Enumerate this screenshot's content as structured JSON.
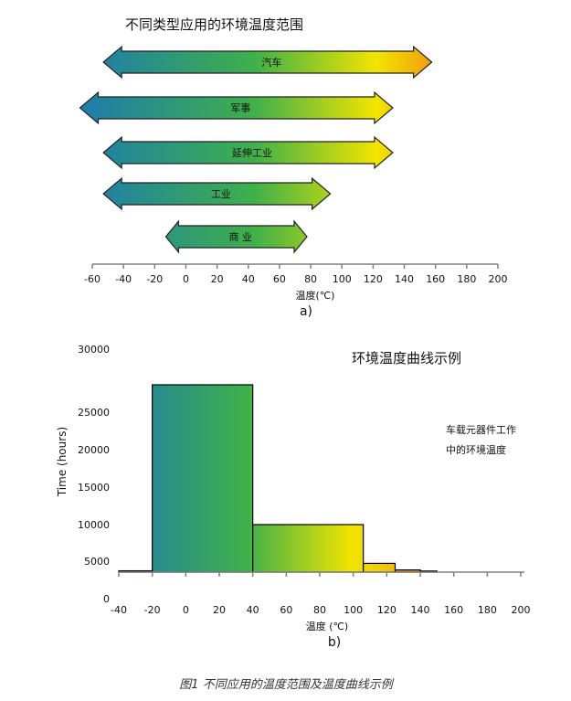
{
  "figure": {
    "panel_a_label": "a)",
    "panel_b_label": "b)",
    "caption": "图1 不同应用的温度范围及温度曲线示例"
  },
  "colors": {
    "grad_start": "#1f7fa6",
    "grad_mid": "#3fb04a",
    "grad_yellow": "#f2e500",
    "grad_end": "#ef4b1f",
    "axis": "#808080",
    "tick_text": "#111111",
    "bar_outline": "#000000",
    "small_bar_blue": "#2a83b6",
    "small_bar_orange": "#f08a1e",
    "small_bar_red": "#c8432a"
  },
  "chart_data": [
    {
      "type": "range-arrows",
      "title": "不同类型应用的环境温度范围",
      "xlabel": "温度(℃)",
      "xlim": [
        -60,
        200
      ],
      "xticks": [
        -60,
        -40,
        -20,
        0,
        20,
        40,
        60,
        80,
        100,
        120,
        140,
        160,
        180,
        200
      ],
      "ranges": [
        {
          "name": "汽车",
          "min": -40,
          "max": 150
        },
        {
          "name": "军事",
          "min": -55,
          "max": 125
        },
        {
          "name": "延伸工业",
          "min": -40,
          "max": 125
        },
        {
          "name": "工业",
          "min": -40,
          "max": 85
        },
        {
          "name": "商 业",
          "min": 0,
          "max": 70
        }
      ]
    },
    {
      "type": "bar",
      "title": "环境温度曲线示例",
      "annotation": "车载元器件工作中的环境温度",
      "xlabel": "温度 (℃)",
      "ylabel": "Time (hours)",
      "xlim": [
        -40,
        200
      ],
      "ylim": [
        0,
        30000
      ],
      "xticks": [
        -40,
        -20,
        0,
        20,
        40,
        60,
        80,
        100,
        120,
        140,
        160,
        180,
        200
      ],
      "yticks": [
        0,
        5000,
        10000,
        15000,
        20000,
        25000,
        30000
      ],
      "bins": [
        {
          "x0": -40,
          "x1": -20,
          "value": 600
        },
        {
          "x0": -20,
          "x1": 40,
          "value": 25000
        },
        {
          "x0": 40,
          "x1": 106,
          "value": 10000
        },
        {
          "x0": 106,
          "x1": 125,
          "value": 4000
        },
        {
          "x0": 125,
          "x1": 140,
          "value": 1000
        },
        {
          "x0": 140,
          "x1": 150,
          "value": 500
        }
      ]
    }
  ]
}
